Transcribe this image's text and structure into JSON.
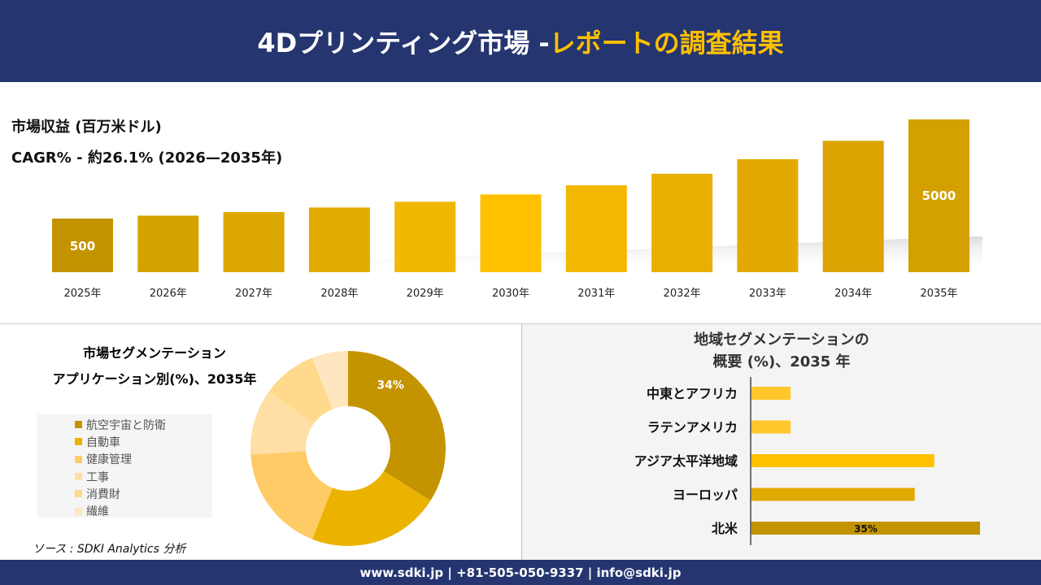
{
  "header": {
    "title_main": "4Dプリンティング市場 -",
    "title_accent": "レポートの調査結果"
  },
  "footer": {
    "contact": "www.sdki.jp | +81-505-050-9337 | info@sdki.jp"
  },
  "colors": {
    "navy": "#253570",
    "gold": "#FFC000",
    "dark_gold": "#C49400"
  },
  "chart_data": [
    {
      "type": "bar",
      "title": "市場収益 (百万米ドル)",
      "subtitle": "CAGR% - 約26.1% (2026—2035年)",
      "categories": [
        "2025年",
        "2026年",
        "2027年",
        "2028年",
        "2029年",
        "2030年",
        "2031年",
        "2032年",
        "2033年",
        "2034年",
        "2035年"
      ],
      "values": [
        500,
        631,
        795,
        1002,
        1264,
        1594,
        2010,
        2535,
        3196,
        4030,
        5000
      ],
      "data_labels": {
        "0": "500",
        "10": "5000"
      },
      "grid": false
    },
    {
      "type": "pie",
      "title": "市場セグメンテーション",
      "subtitle": "アプリケーション別(%)、2035年",
      "categories": [
        "航空宇宙と防衛",
        "自動車",
        "健康管理",
        "工事",
        "消費財",
        "繊維"
      ],
      "values": [
        34,
        22,
        18,
        11,
        9,
        6
      ],
      "colors": [
        "#C49400",
        "#EBB300",
        "#FFCB66",
        "#FFDFA6",
        "#FFD98C",
        "#FFE6C0"
      ],
      "data_labels": {
        "0": "34%"
      },
      "legend": "left",
      "donut": true
    },
    {
      "type": "bar",
      "orientation": "horizontal",
      "title": "地域セグメンテーションの",
      "subtitle": "概要 (%)、2035 年",
      "categories": [
        "中東とアフリカ",
        "ラテンアメリカ",
        "アジア太平洋地域",
        "ヨーロッパ",
        "北米"
      ],
      "values": [
        6,
        6,
        28,
        25,
        35
      ],
      "colors": [
        "#FFC72C",
        "#FFC72C",
        "#FFC000",
        "#E0AA00",
        "#C49400"
      ],
      "data_labels": {
        "4": "35%"
      }
    }
  ],
  "source": "ソース : SDKI Analytics 分析"
}
